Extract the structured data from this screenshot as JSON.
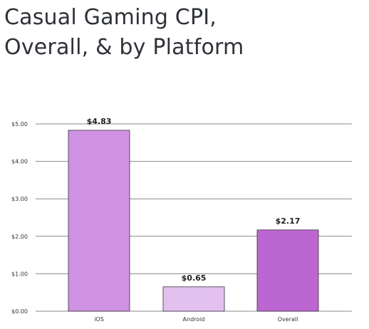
{
  "title": {
    "line1": "Casual Gaming CPI,",
    "line2": "Overall, & by Platform"
  },
  "chart_data": {
    "type": "bar",
    "categories": [
      "iOS",
      "Android",
      "Overall"
    ],
    "values": [
      4.83,
      0.65,
      2.17
    ],
    "data_labels": [
      "$4.83",
      "$0.65",
      "$2.17"
    ],
    "colors": [
      "#cf92e2",
      "#e3c1ef",
      "#bc67d1"
    ],
    "bar_stroke": "#3a2f3e",
    "grid_color": "#888888",
    "y_ticks": [
      0,
      1,
      2,
      3,
      4,
      5
    ],
    "y_tick_labels": [
      "$0.00",
      "$1.00",
      "$2.00",
      "$3.00",
      "$4.00",
      "$5.00"
    ],
    "ylim": [
      0,
      5
    ],
    "grid": true,
    "title": "",
    "xlabel": "",
    "ylabel": ""
  }
}
